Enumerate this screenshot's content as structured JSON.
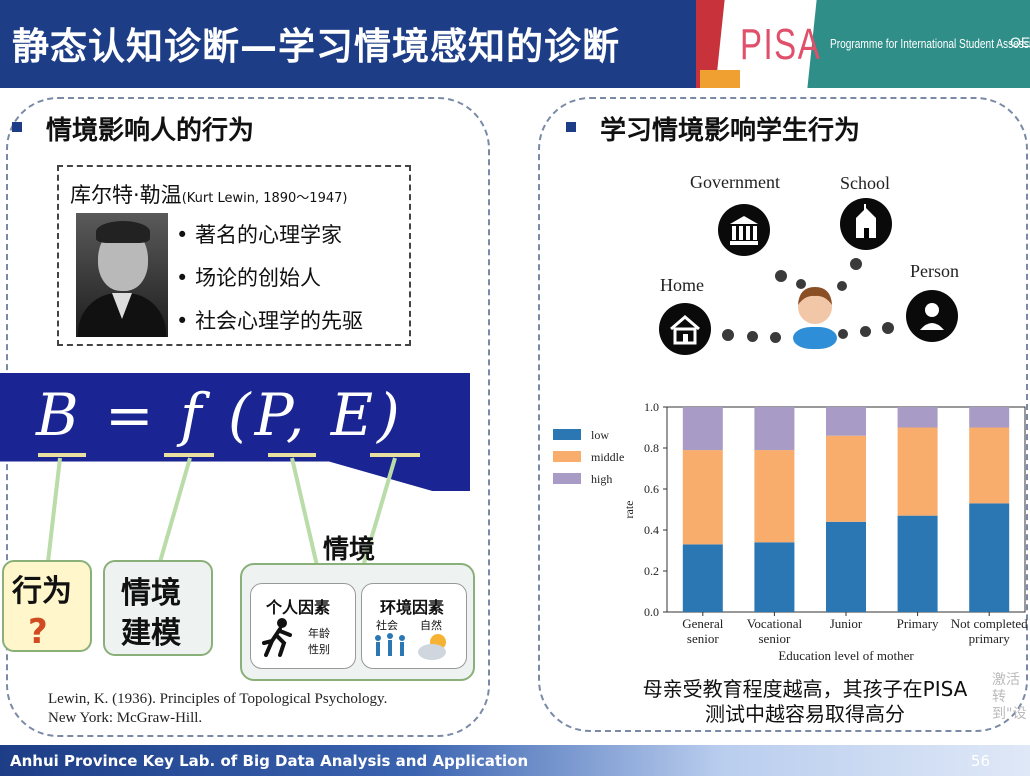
{
  "header": {
    "title": "静态认知诊断—学习情境感知的诊断",
    "pisa_logo": "PISA",
    "programme": "Programme for International Student Assessment",
    "oecd": "OECD"
  },
  "left": {
    "section_title": "情境影响人的行为",
    "lewin_name": "库尔特·勒温",
    "lewin_dates": "(Kurt Lewin, 1890～1947)",
    "facts": [
      "著名的心理学家",
      "场论的创始人",
      "社会心理学的先驱"
    ],
    "formula": "B = f (P,  E)",
    "box_behavior": "行为",
    "box_behavior_mark": "?",
    "box_model_line1": "情境",
    "box_model_line2": "建模",
    "situation_label": "情境",
    "personal_factors": "个人因素",
    "personal_sub": [
      "年龄",
      "性别"
    ],
    "env_factors": "环境因素",
    "env_sub": [
      "社会",
      "自然"
    ],
    "reference_line1": "Lewin, K. (1936). Principles of Topological Psychology.",
    "reference_line2": "New York: McGraw-Hill."
  },
  "right": {
    "section_title": "学习情境影响学生行为",
    "nodes": {
      "government": "Government",
      "school": "School",
      "home": "Home",
      "person": "Person"
    },
    "caption_line1": "母亲受教育程度越高，其孩子在PISA",
    "caption_line2": "测试中越容易取得高分",
    "watermark_line1": "激活",
    "watermark_line2": "转到\"设"
  },
  "chart_data": {
    "type": "bar",
    "stacked": true,
    "categories": [
      [
        "General",
        "senior"
      ],
      [
        "Vocational",
        "senior"
      ],
      [
        "Junior"
      ],
      [
        "Primary"
      ],
      [
        "Not completed",
        "primary"
      ]
    ],
    "series": [
      {
        "name": "low",
        "values": [
          0.33,
          0.34,
          0.44,
          0.47,
          0.53
        ]
      },
      {
        "name": "middle",
        "values": [
          0.46,
          0.45,
          0.42,
          0.43,
          0.37
        ]
      },
      {
        "name": "high",
        "values": [
          0.21,
          0.21,
          0.14,
          0.1,
          0.1
        ]
      }
    ],
    "colors": [
      "#2a77b4",
      "#f9ad6c",
      "#a89bc5"
    ],
    "xlabel": "Education level of mother",
    "ylabel": "rate",
    "ylim": [
      0,
      1.0
    ],
    "yticks": [
      "0.0",
      "0.2",
      "0.4",
      "0.6",
      "0.8",
      "1.0"
    ],
    "legend": "top-left",
    "grid": false
  },
  "footer": {
    "lab": "Anhui Province Key Lab. of Big Data Analysis and Application",
    "page": "56"
  }
}
